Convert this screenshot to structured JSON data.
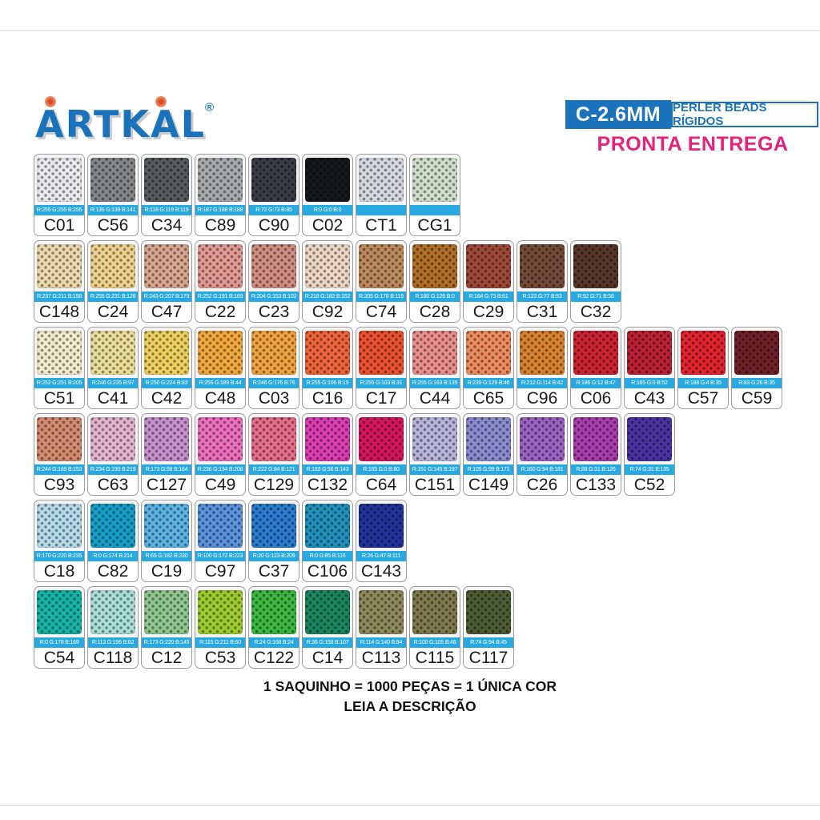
{
  "logo": {
    "text": "ARTKAL",
    "registered": "®"
  },
  "header": {
    "size_label": "C-2.6MM",
    "product_label": "PERLER BEADS RÍGIDOS",
    "availability": "PRONTA ENTREGA",
    "header_blue": "#1b74bb",
    "availability_pink": "#e52179",
    "rgb_bar_blue": "#29a9e2"
  },
  "footer": {
    "line1": "1 SAQUINHO = 1000 PEÇAS  = 1 ÚNICA COR",
    "line2": "LEIA A DESCRIÇÃO"
  },
  "rows": [
    [
      {
        "code": "C01",
        "rgb": "R:255 G:255 B:255",
        "hex": "#e9e9eb"
      },
      {
        "code": "C56",
        "rgb": "R:136 G:139 B:141",
        "hex": "#84878a"
      },
      {
        "code": "C34",
        "rgb": "R:118 G:119 B:119",
        "hex": "#595b5d"
      },
      {
        "code": "C89",
        "rgb": "R:187 G:188 B:188",
        "hex": "#a7a9aa"
      },
      {
        "code": "C90",
        "rgb": "R:72 G:73 B:85",
        "hex": "#3a3d47"
      },
      {
        "code": "C02",
        "rgb": "R:0 G:0 B:0",
        "hex": "#17181a"
      },
      {
        "code": "CT1",
        "rgb": "",
        "hex": "#d7d7df"
      },
      {
        "code": "CG1",
        "rgb": "",
        "hex": "#cfe0ca"
      }
    ],
    [
      {
        "code": "C148",
        "rgb": "R:237 G:211 B:158",
        "hex": "#ecd9ad"
      },
      {
        "code": "C24",
        "rgb": "R:255 G:231 B:128",
        "hex": "#f0d28f"
      },
      {
        "code": "C47",
        "rgb": "R:243 G:207 B:179",
        "hex": "#d8a78f"
      },
      {
        "code": "C22",
        "rgb": "R:252 G:191 B:169",
        "hex": "#e29a95"
      },
      {
        "code": "C23",
        "rgb": "R:204 G:153 B:102",
        "hex": "#d08e85"
      },
      {
        "code": "C92",
        "rgb": "R:218 G:182 B:152",
        "hex": "#ecd8c5"
      },
      {
        "code": "C74",
        "rgb": "R:205 G:178 B:119",
        "hex": "#bc8a5c"
      },
      {
        "code": "C28",
        "rgb": "R:180 G:126 B:0",
        "hex": "#b07027"
      },
      {
        "code": "C29",
        "rgb": "R:164 G:73 B:61",
        "hex": "#9e4837"
      },
      {
        "code": "C31",
        "rgb": "R:123 G:77 B:53",
        "hex": "#734a3a"
      },
      {
        "code": "C32",
        "rgb": "R:92 G:71 B:56",
        "hex": "#573729"
      }
    ],
    [
      {
        "code": "C51",
        "rgb": "R:252 G:251 B:205",
        "hex": "#f0ebcb"
      },
      {
        "code": "C41",
        "rgb": "R:246 G:235 B:97",
        "hex": "#eadf99"
      },
      {
        "code": "C42",
        "rgb": "R:250 G:224 B:83",
        "hex": "#edd160"
      },
      {
        "code": "C48",
        "rgb": "R:255 G:189 B:44",
        "hex": "#f1a83d"
      },
      {
        "code": "C03",
        "rgb": "R:246 G:176 B:76",
        "hex": "#efa440"
      },
      {
        "code": "C16",
        "rgb": "R:255 G:106 B:19",
        "hex": "#ef663c"
      },
      {
        "code": "C17",
        "rgb": "R:255 G:103 B:31",
        "hex": "#ea5130"
      },
      {
        "code": "C44",
        "rgb": "R:255 G:163 B:139",
        "hex": "#eb908c"
      },
      {
        "code": "C65",
        "rgb": "R:239 G:129 B:46",
        "hex": "#ee8c60"
      },
      {
        "code": "C96",
        "rgb": "R:212 G:114 B:42",
        "hex": "#d98330"
      },
      {
        "code": "C06",
        "rgb": "R:186 G:12 B:47",
        "hex": "#ce2432"
      },
      {
        "code": "C43",
        "rgb": "R:165 G:0 B:52",
        "hex": "#bc2136"
      },
      {
        "code": "C57",
        "rgb": "R:188 G:4 B:35",
        "hex": "#e02430"
      },
      {
        "code": "C59",
        "rgb": "R:83 G:26 B:35",
        "hex": "#6e2027"
      }
    ],
    [
      {
        "code": "C93",
        "rgb": "R:244 G:169 B:153",
        "hex": "#d48b70"
      },
      {
        "code": "C63",
        "rgb": "R:234 G:190 B:219",
        "hex": "#e5b5ce"
      },
      {
        "code": "C127",
        "rgb": "R:173 G:98 B:164",
        "hex": "#c791ce"
      },
      {
        "code": "C49",
        "rgb": "R:236 G:134 B:208",
        "hex": "#ed70be"
      },
      {
        "code": "C129",
        "rgb": "R:222 G:84 B:121",
        "hex": "#e66f8d"
      },
      {
        "code": "C132",
        "rgb": "R:183 G:56 B:143",
        "hex": "#dc3eb4"
      },
      {
        "code": "C64",
        "rgb": "R:165 G:0 B:80",
        "hex": "#d6165b"
      },
      {
        "code": "C151",
        "rgb": "R:151 G:145 B:197",
        "hex": "#b9b5dd"
      },
      {
        "code": "C149",
        "rgb": "R:105 G:99 B:171",
        "hex": "#8a8cd0"
      },
      {
        "code": "C26",
        "rgb": "R:160 G:94 B:181",
        "hex": "#9b63c3"
      },
      {
        "code": "C133",
        "rgb": "R:88 G:31 B:126",
        "hex": "#a83ead"
      },
      {
        "code": "C52",
        "rgb": "R:74 G:31 B:135",
        "hex": "#4a34a3"
      }
    ],
    [
      {
        "code": "C18",
        "rgb": "R:170 G:220 B:235",
        "hex": "#b4dbe9"
      },
      {
        "code": "C82",
        "rgb": "R:0 G:174 B:214",
        "hex": "#13a1ca"
      },
      {
        "code": "C19",
        "rgb": "R:65 G:182 B:230",
        "hex": "#5db4e4"
      },
      {
        "code": "C97",
        "rgb": "R:100 G:172 B:223",
        "hex": "#5b93dd"
      },
      {
        "code": "C37",
        "rgb": "R:20 G:123 B:209",
        "hex": "#2d7cd1"
      },
      {
        "code": "C106",
        "rgb": "R:0 G:85 B:116",
        "hex": "#1e92bd"
      },
      {
        "code": "C143",
        "rgb": "R:26 G:47 B:111",
        "hex": "#20339b"
      }
    ],
    [
      {
        "code": "C54",
        "rgb": "R:0 G:178 B:169",
        "hex": "#16b5a8"
      },
      {
        "code": "C118",
        "rgb": "R:113 G:196 B:82",
        "hex": "#aadfd6"
      },
      {
        "code": "C12",
        "rgb": "R:173 G:220 B:145",
        "hex": "#8fc78e"
      },
      {
        "code": "C53",
        "rgb": "R:115 G:211 B:60",
        "hex": "#9ccc2f"
      },
      {
        "code": "C122",
        "rgb": "R:24 G:168 B:24",
        "hex": "#3db842"
      },
      {
        "code": "C14",
        "rgb": "R:36 G:158 B:107",
        "hex": "#18865e"
      },
      {
        "code": "C113",
        "rgb": "R:114 G:140 B:84",
        "hex": "#8e895b"
      },
      {
        "code": "C115",
        "rgb": "R:100 G:105 B:46",
        "hex": "#7d7a4e"
      },
      {
        "code": "C117",
        "rgb": "R:74 G:94 B:45",
        "hex": "#4e5c33"
      }
    ]
  ]
}
